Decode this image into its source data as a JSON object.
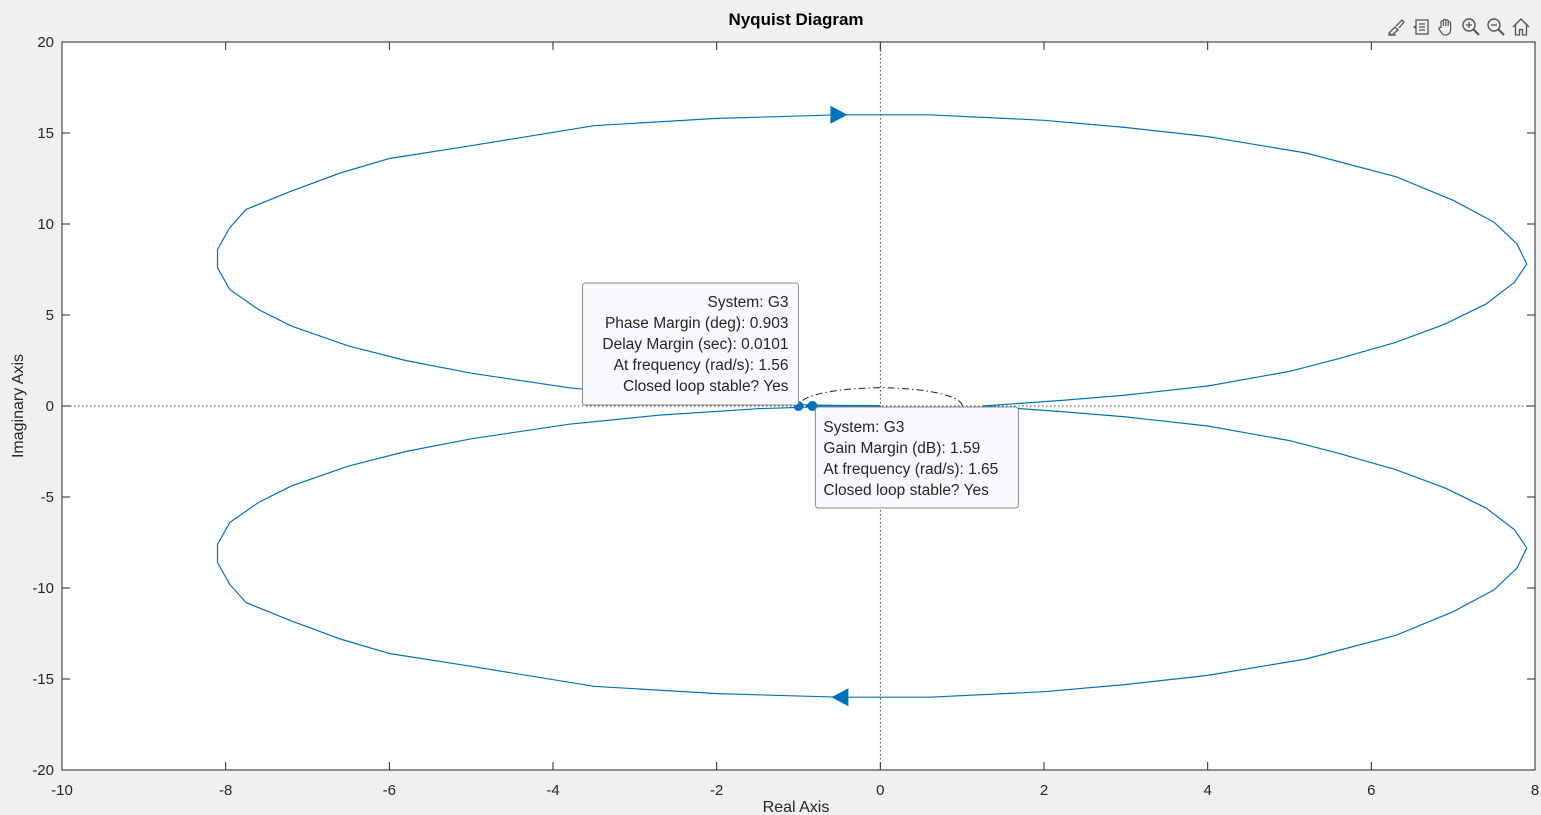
{
  "toolbar": {
    "buttons": [
      {
        "name": "brush-icon",
        "tooltip": "Brush"
      },
      {
        "name": "datatip-icon",
        "tooltip": "Data Tips"
      },
      {
        "name": "pan-hand-icon",
        "tooltip": "Pan"
      },
      {
        "name": "zoom-in-icon",
        "tooltip": "Zoom In"
      },
      {
        "name": "zoom-out-icon",
        "tooltip": "Zoom Out"
      },
      {
        "name": "home-icon",
        "tooltip": "Restore View"
      }
    ]
  },
  "chart_data": {
    "type": "line",
    "title": "Nyquist Diagram",
    "xlabel": "Real Axis",
    "ylabel": "Imaginary Axis",
    "xlim": [
      -10,
      8
    ],
    "ylim": [
      -20,
      20
    ],
    "xticks": [
      -10,
      -8,
      -6,
      -4,
      -2,
      0,
      2,
      4,
      6,
      8
    ],
    "yticks": [
      -20,
      -15,
      -10,
      -5,
      0,
      5,
      10,
      15,
      20
    ],
    "grid": false,
    "colors": {
      "series": "#0072BD",
      "background": "#ffffff",
      "figure": "#f0f0f0",
      "axis": "#262626"
    },
    "series": [
      {
        "system": "G3",
        "points_positive_freq": [
          [
            1.25,
            0.0
          ],
          [
            2.2,
            0.3
          ],
          [
            3.0,
            0.6
          ],
          [
            4.0,
            1.1
          ],
          [
            5.0,
            1.9
          ],
          [
            5.6,
            2.6
          ],
          [
            6.3,
            3.5
          ],
          [
            6.9,
            4.5
          ],
          [
            7.4,
            5.6
          ],
          [
            7.75,
            6.8
          ],
          [
            7.9,
            7.8
          ],
          [
            7.78,
            8.9
          ],
          [
            7.5,
            10.1
          ],
          [
            7.0,
            11.3
          ],
          [
            6.3,
            12.6
          ],
          [
            5.2,
            13.9
          ],
          [
            4.0,
            14.8
          ],
          [
            3.0,
            15.3
          ],
          [
            2.0,
            15.7
          ],
          [
            0.6,
            16.0
          ],
          [
            -0.5,
            16.0
          ],
          [
            -2.0,
            15.8
          ],
          [
            -3.5,
            15.4
          ],
          [
            -5.0,
            14.3
          ],
          [
            -6.0,
            13.6
          ],
          [
            -6.6,
            12.8
          ],
          [
            -7.2,
            11.8
          ],
          [
            -7.75,
            10.8
          ],
          [
            -7.95,
            9.8
          ],
          [
            -8.1,
            8.6
          ],
          [
            -8.1,
            7.6
          ],
          [
            -7.95,
            6.4
          ],
          [
            -7.6,
            5.3
          ],
          [
            -7.2,
            4.4
          ],
          [
            -6.5,
            3.3
          ],
          [
            -5.8,
            2.5
          ],
          [
            -5.0,
            1.8
          ],
          [
            -3.8,
            1.0
          ],
          [
            -2.7,
            0.5
          ],
          [
            -1.5,
            0.15
          ],
          [
            -0.8,
            0.05
          ],
          [
            0.0,
            0.0
          ]
        ],
        "mirror": true,
        "arrows": [
          {
            "x": -0.5,
            "y": 16.0,
            "direction": "right"
          },
          {
            "x": -0.5,
            "y": -16.0,
            "direction": "left"
          }
        ]
      }
    ],
    "unit_circle_arc": {
      "center": [
        0,
        0
      ],
      "radius": 1,
      "visible_part": "upper"
    },
    "markers": [
      {
        "label": "phase-margin",
        "x": -1.0,
        "y": 0.0
      },
      {
        "label": "gain-margin",
        "x": -0.83,
        "y": 0.0
      }
    ],
    "datatips": [
      {
        "id": "phase",
        "anchor_x": -1.0,
        "anchor_y": 0.0,
        "lines": [
          "System: G3",
          "Phase Margin (deg): 0.903",
          "Delay Margin (sec): 0.0101",
          "At frequency (rad/s): 1.56",
          "Closed loop stable? Yes"
        ],
        "align": "right"
      },
      {
        "id": "gain",
        "anchor_x": -0.83,
        "anchor_y": 0.0,
        "lines": [
          "System: G3",
          "Gain Margin (dB): 1.59",
          "At frequency (rad/s): 1.65",
          "Closed loop stable? Yes"
        ],
        "align": "left"
      }
    ]
  }
}
